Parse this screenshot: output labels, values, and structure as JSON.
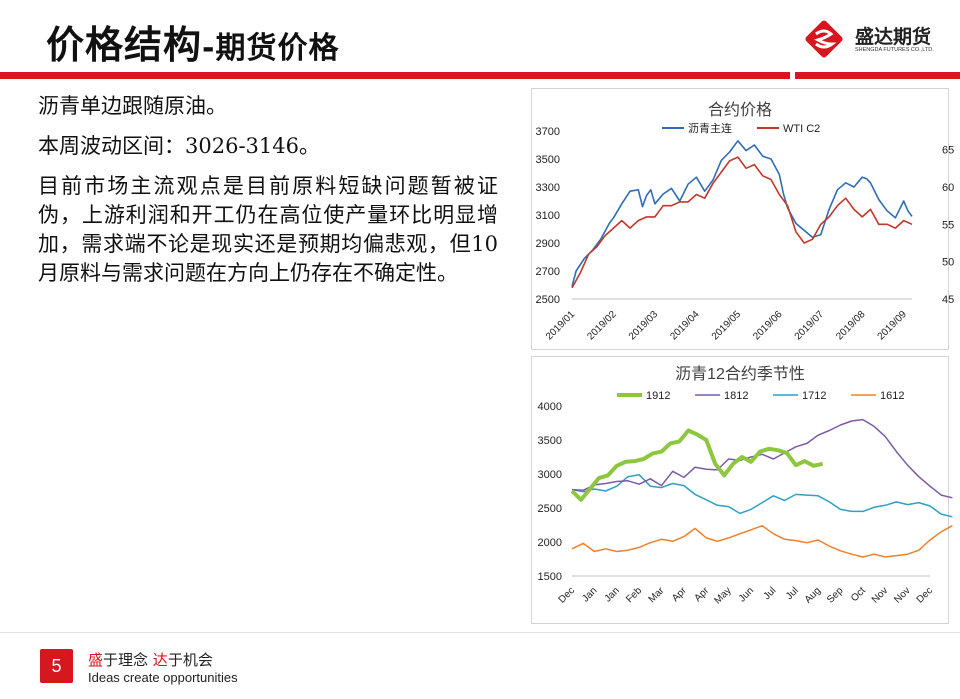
{
  "header": {
    "title_main": "价格结构",
    "title_sub": "-期货价格",
    "logo_name": "盛达期货",
    "logo_en": "SHENGDA FUTURES CO.,LTD."
  },
  "body": {
    "p1": "沥青单边跟随原油。",
    "p2": "本周波动区间：3026-3146。",
    "p3": "目前市场主流观点是目前原料短缺问题暂被证伪，上游利润和开工仍在高位使产量环比明显增加，需求端不论是现实还是预期均偏悲观，但10月原料与需求问题在方向上仍存在不确定性。"
  },
  "footer": {
    "page_number": "5",
    "slogan_a": "盛",
    "slogan_b": "于理念 ",
    "slogan_c": "达",
    "slogan_d": "于机会",
    "slogan_en": "Ideas create opportunities"
  },
  "colors": {
    "brand_red": "#d7171f"
  },
  "chart_data": [
    {
      "type": "line",
      "title": "合约价格",
      "xlabel": "",
      "ylabel": "",
      "x_ticks": [
        "2019/01",
        "2019/02",
        "2019/03",
        "2019/04",
        "2019/05",
        "2019/06",
        "2019/07",
        "2019/08",
        "2019/09"
      ],
      "y_ticks": [
        "2500",
        "2700",
        "2900",
        "3100",
        "3300",
        "3500",
        "3700"
      ],
      "y2_ticks": [
        "45",
        "50",
        "55",
        "60",
        "65"
      ],
      "ylim": [
        2500,
        3700
      ],
      "y2lim": [
        45,
        67.5
      ],
      "x_range": [
        0,
        8.2
      ],
      "legend_position": "top",
      "series": [
        {
          "name": "沥青主连",
          "axis": "left",
          "color": "#2e6db4",
          "values": [
            [
              0,
              2590
            ],
            [
              0.1,
              2700
            ],
            [
              0.3,
              2790
            ],
            [
              0.5,
              2850
            ],
            [
              0.7,
              2930
            ],
            [
              0.9,
              3040
            ],
            [
              1.0,
              3080
            ],
            [
              1.2,
              3180
            ],
            [
              1.4,
              3270
            ],
            [
              1.6,
              3280
            ],
            [
              1.7,
              3160
            ],
            [
              1.8,
              3240
            ],
            [
              1.9,
              3280
            ],
            [
              2.0,
              3180
            ],
            [
              2.2,
              3250
            ],
            [
              2.4,
              3290
            ],
            [
              2.6,
              3200
            ],
            [
              2.8,
              3320
            ],
            [
              3.0,
              3370
            ],
            [
              3.2,
              3270
            ],
            [
              3.4,
              3350
            ],
            [
              3.6,
              3490
            ],
            [
              3.8,
              3550
            ],
            [
              4.0,
              3630
            ],
            [
              4.2,
              3560
            ],
            [
              4.4,
              3600
            ],
            [
              4.6,
              3520
            ],
            [
              4.8,
              3500
            ],
            [
              5.0,
              3390
            ],
            [
              5.1,
              3250
            ],
            [
              5.2,
              3150
            ],
            [
              5.4,
              3040
            ],
            [
              5.6,
              2990
            ],
            [
              5.8,
              2940
            ],
            [
              6.0,
              2960
            ],
            [
              6.2,
              3140
            ],
            [
              6.4,
              3280
            ],
            [
              6.6,
              3330
            ],
            [
              6.8,
              3300
            ],
            [
              7.0,
              3370
            ],
            [
              7.1,
              3360
            ],
            [
              7.2,
              3330
            ],
            [
              7.4,
              3210
            ],
            [
              7.6,
              3130
            ],
            [
              7.8,
              3080
            ],
            [
              8.0,
              3200
            ],
            [
              8.1,
              3130
            ],
            [
              8.2,
              3090
            ]
          ]
        },
        {
          "name": "WTI C2",
          "axis": "right",
          "color": "#c0392b",
          "values": [
            [
              0,
              46.5
            ],
            [
              0.2,
              48.5
            ],
            [
              0.4,
              51
            ],
            [
              0.6,
              52
            ],
            [
              0.8,
              53.5
            ],
            [
              1.0,
              54.5
            ],
            [
              1.2,
              55.5
            ],
            [
              1.4,
              54.5
            ],
            [
              1.6,
              55.5
            ],
            [
              1.8,
              56
            ],
            [
              2.0,
              56
            ],
            [
              2.2,
              57.5
            ],
            [
              2.4,
              57.5
            ],
            [
              2.6,
              58
            ],
            [
              2.8,
              58
            ],
            [
              3.0,
              59
            ],
            [
              3.2,
              58.5
            ],
            [
              3.4,
              60.5
            ],
            [
              3.6,
              62
            ],
            [
              3.8,
              63.5
            ],
            [
              4.0,
              64
            ],
            [
              4.2,
              62.5
            ],
            [
              4.4,
              63
            ],
            [
              4.6,
              61.5
            ],
            [
              4.8,
              61
            ],
            [
              5.0,
              59
            ],
            [
              5.2,
              57.5
            ],
            [
              5.4,
              54
            ],
            [
              5.6,
              52.5
            ],
            [
              5.8,
              53
            ],
            [
              6.0,
              55
            ],
            [
              6.2,
              56
            ],
            [
              6.4,
              57.5
            ],
            [
              6.6,
              58.5
            ],
            [
              6.8,
              57
            ],
            [
              7.0,
              56
            ],
            [
              7.2,
              57
            ],
            [
              7.4,
              55
            ],
            [
              7.6,
              55
            ],
            [
              7.8,
              54.5
            ],
            [
              8.0,
              55.5
            ],
            [
              8.2,
              55
            ]
          ]
        }
      ]
    },
    {
      "type": "line",
      "title": "沥青12合约季节性",
      "xlabel": "",
      "ylabel": "",
      "categories": [
        "Dec",
        "Jan",
        "Jan",
        "Feb",
        "Mar",
        "Apr",
        "Apr",
        "May",
        "Jun",
        "Jul",
        "Jul",
        "Aug",
        "Sep",
        "Oct",
        "Nov",
        "Nov",
        "Dec"
      ],
      "y_ticks": [
        "1500",
        "2000",
        "2500",
        "3000",
        "3500",
        "4000"
      ],
      "ylim": [
        1500,
        4000
      ],
      "legend_position": "top",
      "series": [
        {
          "name": "1912",
          "color": "#8dc63f",
          "stroke": 4,
          "values": [
            [
              0,
              2750
            ],
            [
              0.4,
              2620
            ],
            [
              0.8,
              2780
            ],
            [
              1.2,
              2940
            ],
            [
              1.6,
              2980
            ],
            [
              2.0,
              3120
            ],
            [
              2.4,
              3180
            ],
            [
              2.8,
              3190
            ],
            [
              3.2,
              3220
            ],
            [
              3.6,
              3300
            ],
            [
              4.0,
              3330
            ],
            [
              4.4,
              3450
            ],
            [
              4.8,
              3480
            ],
            [
              5.2,
              3640
            ],
            [
              5.6,
              3580
            ],
            [
              6.0,
              3500
            ],
            [
              6.4,
              3150
            ],
            [
              6.8,
              2980
            ],
            [
              7.2,
              3150
            ],
            [
              7.6,
              3250
            ],
            [
              8.0,
              3180
            ],
            [
              8.4,
              3330
            ],
            [
              8.8,
              3370
            ],
            [
              9.2,
              3350
            ],
            [
              9.6,
              3310
            ],
            [
              10.0,
              3130
            ],
            [
              10.4,
              3190
            ],
            [
              10.8,
              3120
            ],
            [
              11.2,
              3150
            ]
          ]
        },
        {
          "name": "1812",
          "color": "#7b5aa6",
          "stroke": 1.5,
          "values": [
            [
              0,
              2770
            ],
            [
              0.5,
              2760
            ],
            [
              1.0,
              2840
            ],
            [
              1.5,
              2860
            ],
            [
              2.0,
              2890
            ],
            [
              2.5,
              2900
            ],
            [
              3.0,
              2850
            ],
            [
              3.5,
              2930
            ],
            [
              4.0,
              2830
            ],
            [
              4.5,
              3040
            ],
            [
              5.0,
              2950
            ],
            [
              5.5,
              3100
            ],
            [
              6.0,
              3070
            ],
            [
              6.5,
              3060
            ],
            [
              7.0,
              3220
            ],
            [
              7.5,
              3200
            ],
            [
              8.0,
              3250
            ],
            [
              8.5,
              3290
            ],
            [
              9.0,
              3220
            ],
            [
              9.5,
              3310
            ],
            [
              10.0,
              3400
            ],
            [
              10.5,
              3450
            ],
            [
              11.0,
              3570
            ],
            [
              11.5,
              3640
            ],
            [
              12.0,
              3720
            ],
            [
              12.5,
              3780
            ],
            [
              13.0,
              3800
            ],
            [
              13.5,
              3700
            ],
            [
              14.0,
              3550
            ],
            [
              14.5,
              3330
            ],
            [
              15.0,
              3130
            ],
            [
              15.5,
              2960
            ],
            [
              16.0,
              2820
            ],
            [
              16.5,
              2690
            ],
            [
              17.0,
              2650
            ]
          ]
        },
        {
          "name": "1712",
          "color": "#2e9fc6",
          "stroke": 1.5,
          "values": [
            [
              0,
              2770
            ],
            [
              0.5,
              2740
            ],
            [
              1.0,
              2780
            ],
            [
              1.5,
              2750
            ],
            [
              2.0,
              2820
            ],
            [
              2.5,
              2960
            ],
            [
              3.0,
              2990
            ],
            [
              3.5,
              2820
            ],
            [
              4.0,
              2800
            ],
            [
              4.5,
              2860
            ],
            [
              5.0,
              2830
            ],
            [
              5.5,
              2700
            ],
            [
              6.0,
              2620
            ],
            [
              6.5,
              2540
            ],
            [
              7.0,
              2520
            ],
            [
              7.5,
              2420
            ],
            [
              8.0,
              2480
            ],
            [
              8.5,
              2580
            ],
            [
              9.0,
              2680
            ],
            [
              9.5,
              2610
            ],
            [
              10.0,
              2700
            ],
            [
              10.5,
              2690
            ],
            [
              11.0,
              2680
            ],
            [
              11.5,
              2590
            ],
            [
              12.0,
              2480
            ],
            [
              12.5,
              2450
            ],
            [
              13.0,
              2450
            ],
            [
              13.5,
              2510
            ],
            [
              14.0,
              2540
            ],
            [
              14.5,
              2590
            ],
            [
              15.0,
              2550
            ],
            [
              15.5,
              2580
            ],
            [
              16.0,
              2530
            ],
            [
              16.5,
              2410
            ],
            [
              17.0,
              2370
            ]
          ]
        },
        {
          "name": "1612",
          "color": "#f0802a",
          "stroke": 1.5,
          "values": [
            [
              0,
              1900
            ],
            [
              0.5,
              1980
            ],
            [
              1.0,
              1860
            ],
            [
              1.5,
              1900
            ],
            [
              2.0,
              1860
            ],
            [
              2.5,
              1880
            ],
            [
              3.0,
              1920
            ],
            [
              3.5,
              1990
            ],
            [
              4.0,
              2040
            ],
            [
              4.5,
              2010
            ],
            [
              5.0,
              2080
            ],
            [
              5.5,
              2200
            ],
            [
              6.0,
              2060
            ],
            [
              6.5,
              2010
            ],
            [
              7.0,
              2060
            ],
            [
              7.5,
              2120
            ],
            [
              8.0,
              2180
            ],
            [
              8.5,
              2240
            ],
            [
              9.0,
              2120
            ],
            [
              9.5,
              2040
            ],
            [
              10.0,
              2020
            ],
            [
              10.5,
              1990
            ],
            [
              11.0,
              2030
            ],
            [
              11.5,
              1940
            ],
            [
              12.0,
              1870
            ],
            [
              12.5,
              1820
            ],
            [
              13.0,
              1780
            ],
            [
              13.5,
              1820
            ],
            [
              14.0,
              1780
            ],
            [
              14.5,
              1800
            ],
            [
              15.0,
              1820
            ],
            [
              15.5,
              1880
            ],
            [
              16.0,
              2030
            ],
            [
              16.5,
              2150
            ],
            [
              17.0,
              2240
            ]
          ]
        }
      ]
    }
  ]
}
